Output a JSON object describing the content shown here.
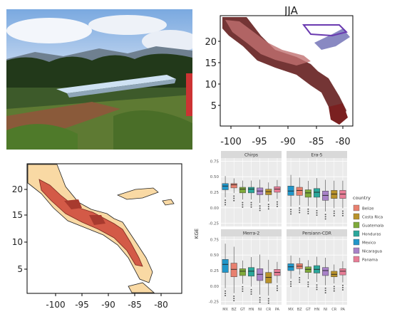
{
  "figure": {
    "photo": {
      "description_icon": "photo-icon"
    },
    "map_top": {
      "title": "JJA",
      "y_ticks": [
        "20",
        "15",
        "10",
        "5"
      ],
      "x_ticks": [
        "-100",
        "-95",
        "-90",
        "-85",
        "-80"
      ]
    },
    "map_bottom": {
      "y_ticks": [
        "20",
        "15",
        "10",
        "5"
      ],
      "x_ticks": [
        "-100",
        "-95",
        "-90",
        "-85",
        "-80"
      ]
    },
    "boxplots": {
      "ylabel": "KGE",
      "y_ticks": [
        "0.75",
        "0.50",
        "0.25",
        "0.00",
        "-0.25"
      ],
      "x_ticks": [
        "MX",
        "BZ",
        "GT",
        "HN",
        "NI",
        "CR",
        "PA"
      ],
      "facets": [
        "Chirps",
        "Era-5",
        "Merra-2",
        "Persiann-CDR"
      ],
      "legend_title": "country",
      "legend": [
        {
          "name": "Belize",
          "color": "#e8806f"
        },
        {
          "name": "Costa Rica",
          "color": "#b8922a"
        },
        {
          "name": "Guatemala",
          "color": "#7faa3a"
        },
        {
          "name": "Honduras",
          "color": "#2aa79b"
        },
        {
          "name": "Mexico",
          "color": "#2196c9"
        },
        {
          "name": "Nicaragua",
          "color": "#a882c8"
        },
        {
          "name": "Panama",
          "color": "#e87d96"
        }
      ]
    }
  },
  "chart_data": [
    {
      "type": "box",
      "facet": "Chirps",
      "categories": [
        "MX",
        "BZ",
        "GT",
        "HN",
        "NI",
        "CR",
        "PA"
      ],
      "medians": [
        0.35,
        0.37,
        0.3,
        0.3,
        0.27,
        0.26,
        0.3
      ],
      "q1": [
        0.29,
        0.32,
        0.24,
        0.24,
        0.21,
        0.21,
        0.25
      ],
      "q3": [
        0.39,
        0.39,
        0.33,
        0.33,
        0.32,
        0.3,
        0.34
      ],
      "ylim": [
        -0.3,
        0.8
      ]
    },
    {
      "type": "box",
      "facet": "Era-5",
      "categories": [
        "MX",
        "BZ",
        "GT",
        "HN",
        "NI",
        "CR",
        "PA"
      ],
      "medians": [
        0.27,
        0.28,
        0.24,
        0.25,
        0.2,
        0.22,
        0.22
      ],
      "q1": [
        0.2,
        0.2,
        0.17,
        0.17,
        0.12,
        0.15,
        0.15
      ],
      "q3": [
        0.35,
        0.33,
        0.29,
        0.31,
        0.27,
        0.28,
        0.28
      ],
      "ylim": [
        -0.3,
        0.8
      ]
    },
    {
      "type": "box",
      "facet": "Merra-2",
      "categories": [
        "MX",
        "BZ",
        "GT",
        "HN",
        "NI",
        "CR",
        "PA"
      ],
      "medians": [
        0.35,
        0.27,
        0.24,
        0.24,
        0.19,
        0.14,
        0.22
      ],
      "q1": [
        0.22,
        0.15,
        0.17,
        0.16,
        0.09,
        0.05,
        0.17
      ],
      "q3": [
        0.43,
        0.37,
        0.28,
        0.3,
        0.28,
        0.22,
        0.27
      ],
      "ylim": [
        -0.3,
        0.8
      ]
    },
    {
      "type": "box",
      "facet": "Persiann-CDR",
      "categories": [
        "MX",
        "BZ",
        "GT",
        "HN",
        "NI",
        "CR",
        "PA"
      ],
      "medians": [
        0.31,
        0.32,
        0.27,
        0.27,
        0.25,
        0.19,
        0.24
      ],
      "q1": [
        0.25,
        0.28,
        0.22,
        0.21,
        0.17,
        0.15,
        0.18
      ],
      "q3": [
        0.36,
        0.36,
        0.31,
        0.33,
        0.3,
        0.24,
        0.28
      ],
      "ylim": [
        -0.3,
        0.8
      ]
    }
  ]
}
